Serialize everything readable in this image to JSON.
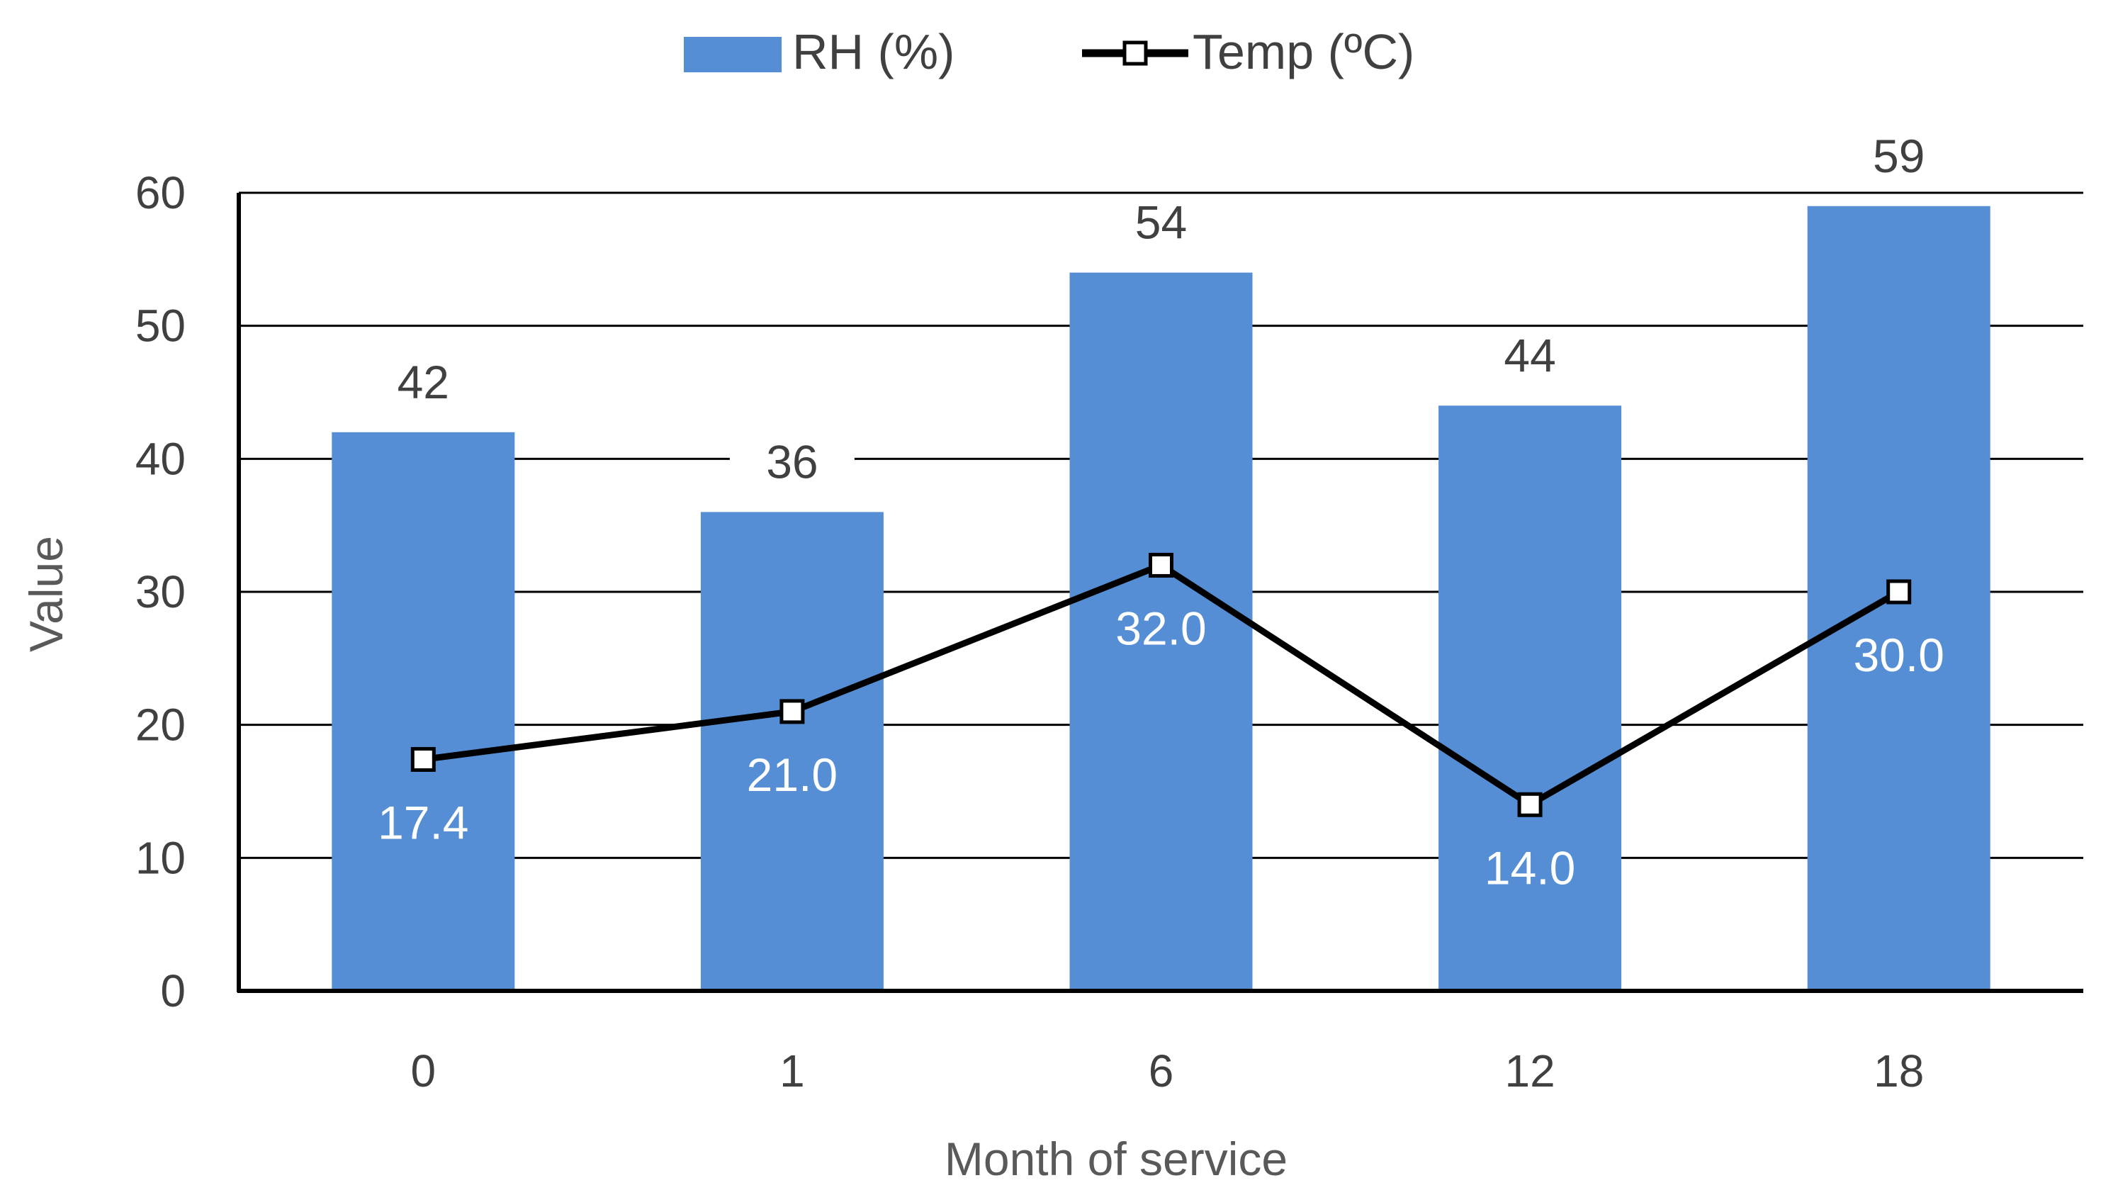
{
  "chart_data": {
    "type": "bar",
    "title": "",
    "xlabel": "Month of service",
    "ylabel": "Value",
    "ylim": [
      0,
      60
    ],
    "yticks": [
      "0",
      "10",
      "20",
      "30",
      "40",
      "50",
      "60"
    ],
    "categories": [
      "0",
      "1",
      "6",
      "12",
      "18"
    ],
    "grid": true,
    "legend_position": "top-center",
    "series": [
      {
        "name": "RH (%)",
        "type": "bar",
        "color": "#558ED5",
        "values": [
          42,
          36,
          54,
          44,
          59
        ],
        "labels": [
          "42",
          "36",
          "54",
          "44",
          "59"
        ]
      },
      {
        "name": "Temp (ºC)",
        "type": "line",
        "color": "#000000",
        "marker": "square-open",
        "values": [
          17.4,
          21.0,
          32.0,
          14.0,
          30.0
        ],
        "labels": [
          "17.4",
          "21.0",
          "32.0",
          "14.0",
          "30.0"
        ]
      }
    ]
  }
}
